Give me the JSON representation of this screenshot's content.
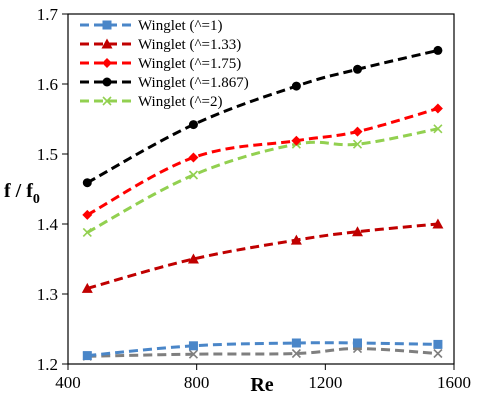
{
  "chart_data": {
    "type": "line",
    "xlabel": "Re",
    "ylabel_main": "f / f",
    "ylabel_sub": "0",
    "xlim": [
      400,
      1600
    ],
    "ylim": [
      1.2,
      1.7
    ],
    "xticks": [
      400,
      800,
      1200,
      1600
    ],
    "yticks": [
      1.2,
      1.3,
      1.4,
      1.5,
      1.6,
      1.7
    ],
    "ytick_labels": [
      "1.2",
      "1.3",
      "1.4",
      "1.5",
      "1.6",
      "1.7"
    ],
    "grid": false,
    "legend_position": "top-left",
    "x": [
      460,
      790,
      1110,
      1300,
      1550
    ],
    "series": [
      {
        "name": "Winglet (^=1)",
        "color": "#4a86c8",
        "marker": "square",
        "values": [
          1.212,
          1.226,
          1.23,
          1.23,
          1.228
        ]
      },
      {
        "name": "Winglet (^=1.33)",
        "color": "#c00000",
        "marker": "triangle",
        "values": [
          1.308,
          1.35,
          1.377,
          1.389,
          1.4
        ]
      },
      {
        "name": "Winglet (^=1.75)",
        "color": "#ff0000",
        "marker": "diamond",
        "values": [
          1.413,
          1.495,
          1.519,
          1.532,
          1.565
        ]
      },
      {
        "name": "Winglet (^=1.867)",
        "color": "#000000",
        "marker": "circle",
        "values": [
          1.459,
          1.542,
          1.597,
          1.621,
          1.648
        ]
      },
      {
        "name": "Winglet (^=2)",
        "color": "#92d050",
        "marker": "cross",
        "values": [
          1.388,
          1.47,
          1.514,
          1.514,
          1.536
        ]
      },
      {
        "name": "",
        "color": "#7f7f7f",
        "marker": "cross",
        "values": [
          1.211,
          1.214,
          1.215,
          1.222,
          1.215
        ]
      }
    ]
  }
}
